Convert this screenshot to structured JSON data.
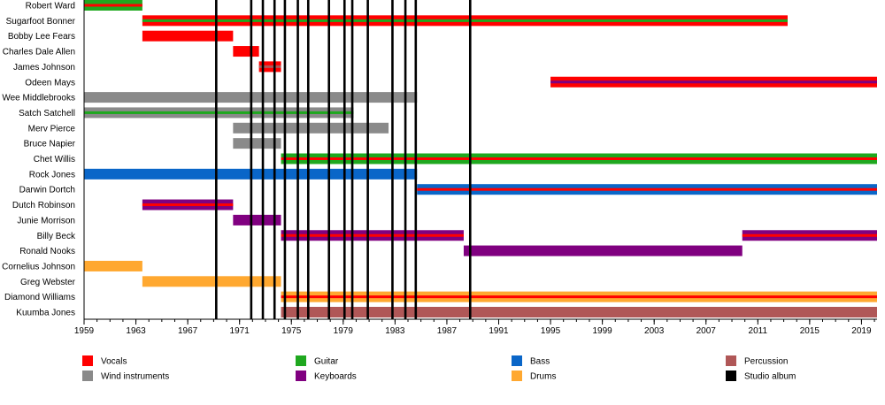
{
  "chart_data": {
    "type": "timeline",
    "xlim": [
      1959,
      2020.2
    ],
    "x_ticks": [
      1959,
      1963,
      1967,
      1971,
      1975,
      1979,
      1983,
      1987,
      1991,
      1995,
      1999,
      2003,
      2007,
      2011,
      2015,
      2019
    ],
    "colors": {
      "vocals": "#ff0000",
      "guitar": "#1fa81f",
      "bass": "#0a66c8",
      "wind": "#8a8a8a",
      "keyboards": "#800080",
      "drums": "#ffa830",
      "percussion": "#b05757",
      "album": "#000000"
    },
    "legend": [
      {
        "label": "Vocals",
        "color": "#ff0000"
      },
      {
        "label": "Wind instruments",
        "color": "#8a8a8a"
      },
      {
        "label": "Guitar",
        "color": "#1fa81f"
      },
      {
        "label": "Keyboards",
        "color": "#800080"
      },
      {
        "label": "Bass",
        "color": "#0a66c8"
      },
      {
        "label": "Drums",
        "color": "#ffa830"
      },
      {
        "label": "Percussion",
        "color": "#b05757"
      },
      {
        "label": "Studio album",
        "color": "#000000"
      }
    ],
    "albums": [
      1969.2,
      1971.9,
      1972.8,
      1973.7,
      1974.5,
      1975.5,
      1976.3,
      1977.9,
      1979.1,
      1979.7,
      1980.9,
      1982.8,
      1983.8,
      1984.6,
      1988.8
    ],
    "members": [
      {
        "name": "Robert Ward",
        "bars": [
          {
            "start": 1959,
            "end": 1963.5,
            "base": "guitar",
            "stripe": "vocals"
          }
        ]
      },
      {
        "name": "Sugarfoot Bonner",
        "bars": [
          {
            "start": 1963.5,
            "end": 2013.3,
            "base": "vocals",
            "stripe": "guitar"
          }
        ]
      },
      {
        "name": "Bobby Lee Fears",
        "bars": [
          {
            "start": 1963.5,
            "end": 1970.5,
            "base": "vocals"
          }
        ]
      },
      {
        "name": "Charles Dale Allen",
        "bars": [
          {
            "start": 1970.5,
            "end": 1972.5,
            "base": "vocals"
          }
        ]
      },
      {
        "name": "James Johnson",
        "bars": [
          {
            "start": 1972.5,
            "end": 1974.2,
            "base": "vocals",
            "stripe": "percussion"
          }
        ]
      },
      {
        "name": "Odeen Mays",
        "bars": [
          {
            "start": 1995,
            "end": 2020.2,
            "base": "vocals",
            "stripe": "keyboards"
          }
        ]
      },
      {
        "name": "Wee Middlebrooks",
        "bars": [
          {
            "start": 1959,
            "end": 1984.7,
            "base": "wind"
          }
        ]
      },
      {
        "name": "Satch Satchell",
        "bars": [
          {
            "start": 1959,
            "end": 1979.8,
            "base": "wind",
            "stripe": "guitar"
          }
        ]
      },
      {
        "name": "Merv Pierce",
        "bars": [
          {
            "start": 1970.5,
            "end": 1982.5,
            "base": "wind"
          }
        ]
      },
      {
        "name": "Bruce Napier",
        "bars": [
          {
            "start": 1970.5,
            "end": 1974.2,
            "base": "wind"
          }
        ]
      },
      {
        "name": "Chet Willis",
        "bars": [
          {
            "start": 1974.2,
            "end": 2020.2,
            "base": "guitar",
            "stripe": "vocals"
          }
        ]
      },
      {
        "name": "Rock Jones",
        "bars": [
          {
            "start": 1959,
            "end": 1984.7,
            "base": "bass"
          }
        ]
      },
      {
        "name": "Darwin Dortch",
        "bars": [
          {
            "start": 1984.7,
            "end": 2020.2,
            "base": "bass",
            "stripe": "vocals"
          }
        ]
      },
      {
        "name": "Dutch Robinson",
        "bars": [
          {
            "start": 1963.5,
            "end": 1970.5,
            "base": "keyboards",
            "stripe": "vocals"
          }
        ]
      },
      {
        "name": "Junie Morrison",
        "bars": [
          {
            "start": 1970.5,
            "end": 1974.2,
            "base": "keyboards"
          }
        ]
      },
      {
        "name": "Billy Beck",
        "bars": [
          {
            "start": 1974.2,
            "end": 1988.3,
            "base": "keyboards",
            "stripe": "vocals"
          },
          {
            "start": 2009.8,
            "end": 2020.2,
            "base": "keyboards",
            "stripe": "vocals"
          }
        ]
      },
      {
        "name": "Ronald Nooks",
        "bars": [
          {
            "start": 1988.3,
            "end": 2009.8,
            "base": "keyboards"
          }
        ]
      },
      {
        "name": "Cornelius Johnson",
        "bars": [
          {
            "start": 1959,
            "end": 1963.5,
            "base": "drums"
          }
        ]
      },
      {
        "name": "Greg Webster",
        "bars": [
          {
            "start": 1963.5,
            "end": 1974.2,
            "base": "drums"
          }
        ]
      },
      {
        "name": "Diamond Williams",
        "bars": [
          {
            "start": 1974.2,
            "end": 2020.2,
            "base": "drums",
            "stripe": "vocals"
          }
        ]
      },
      {
        "name": "Kuumba Jones",
        "bars": [
          {
            "start": 1974.2,
            "end": 2020.2,
            "base": "percussion"
          }
        ]
      }
    ]
  }
}
